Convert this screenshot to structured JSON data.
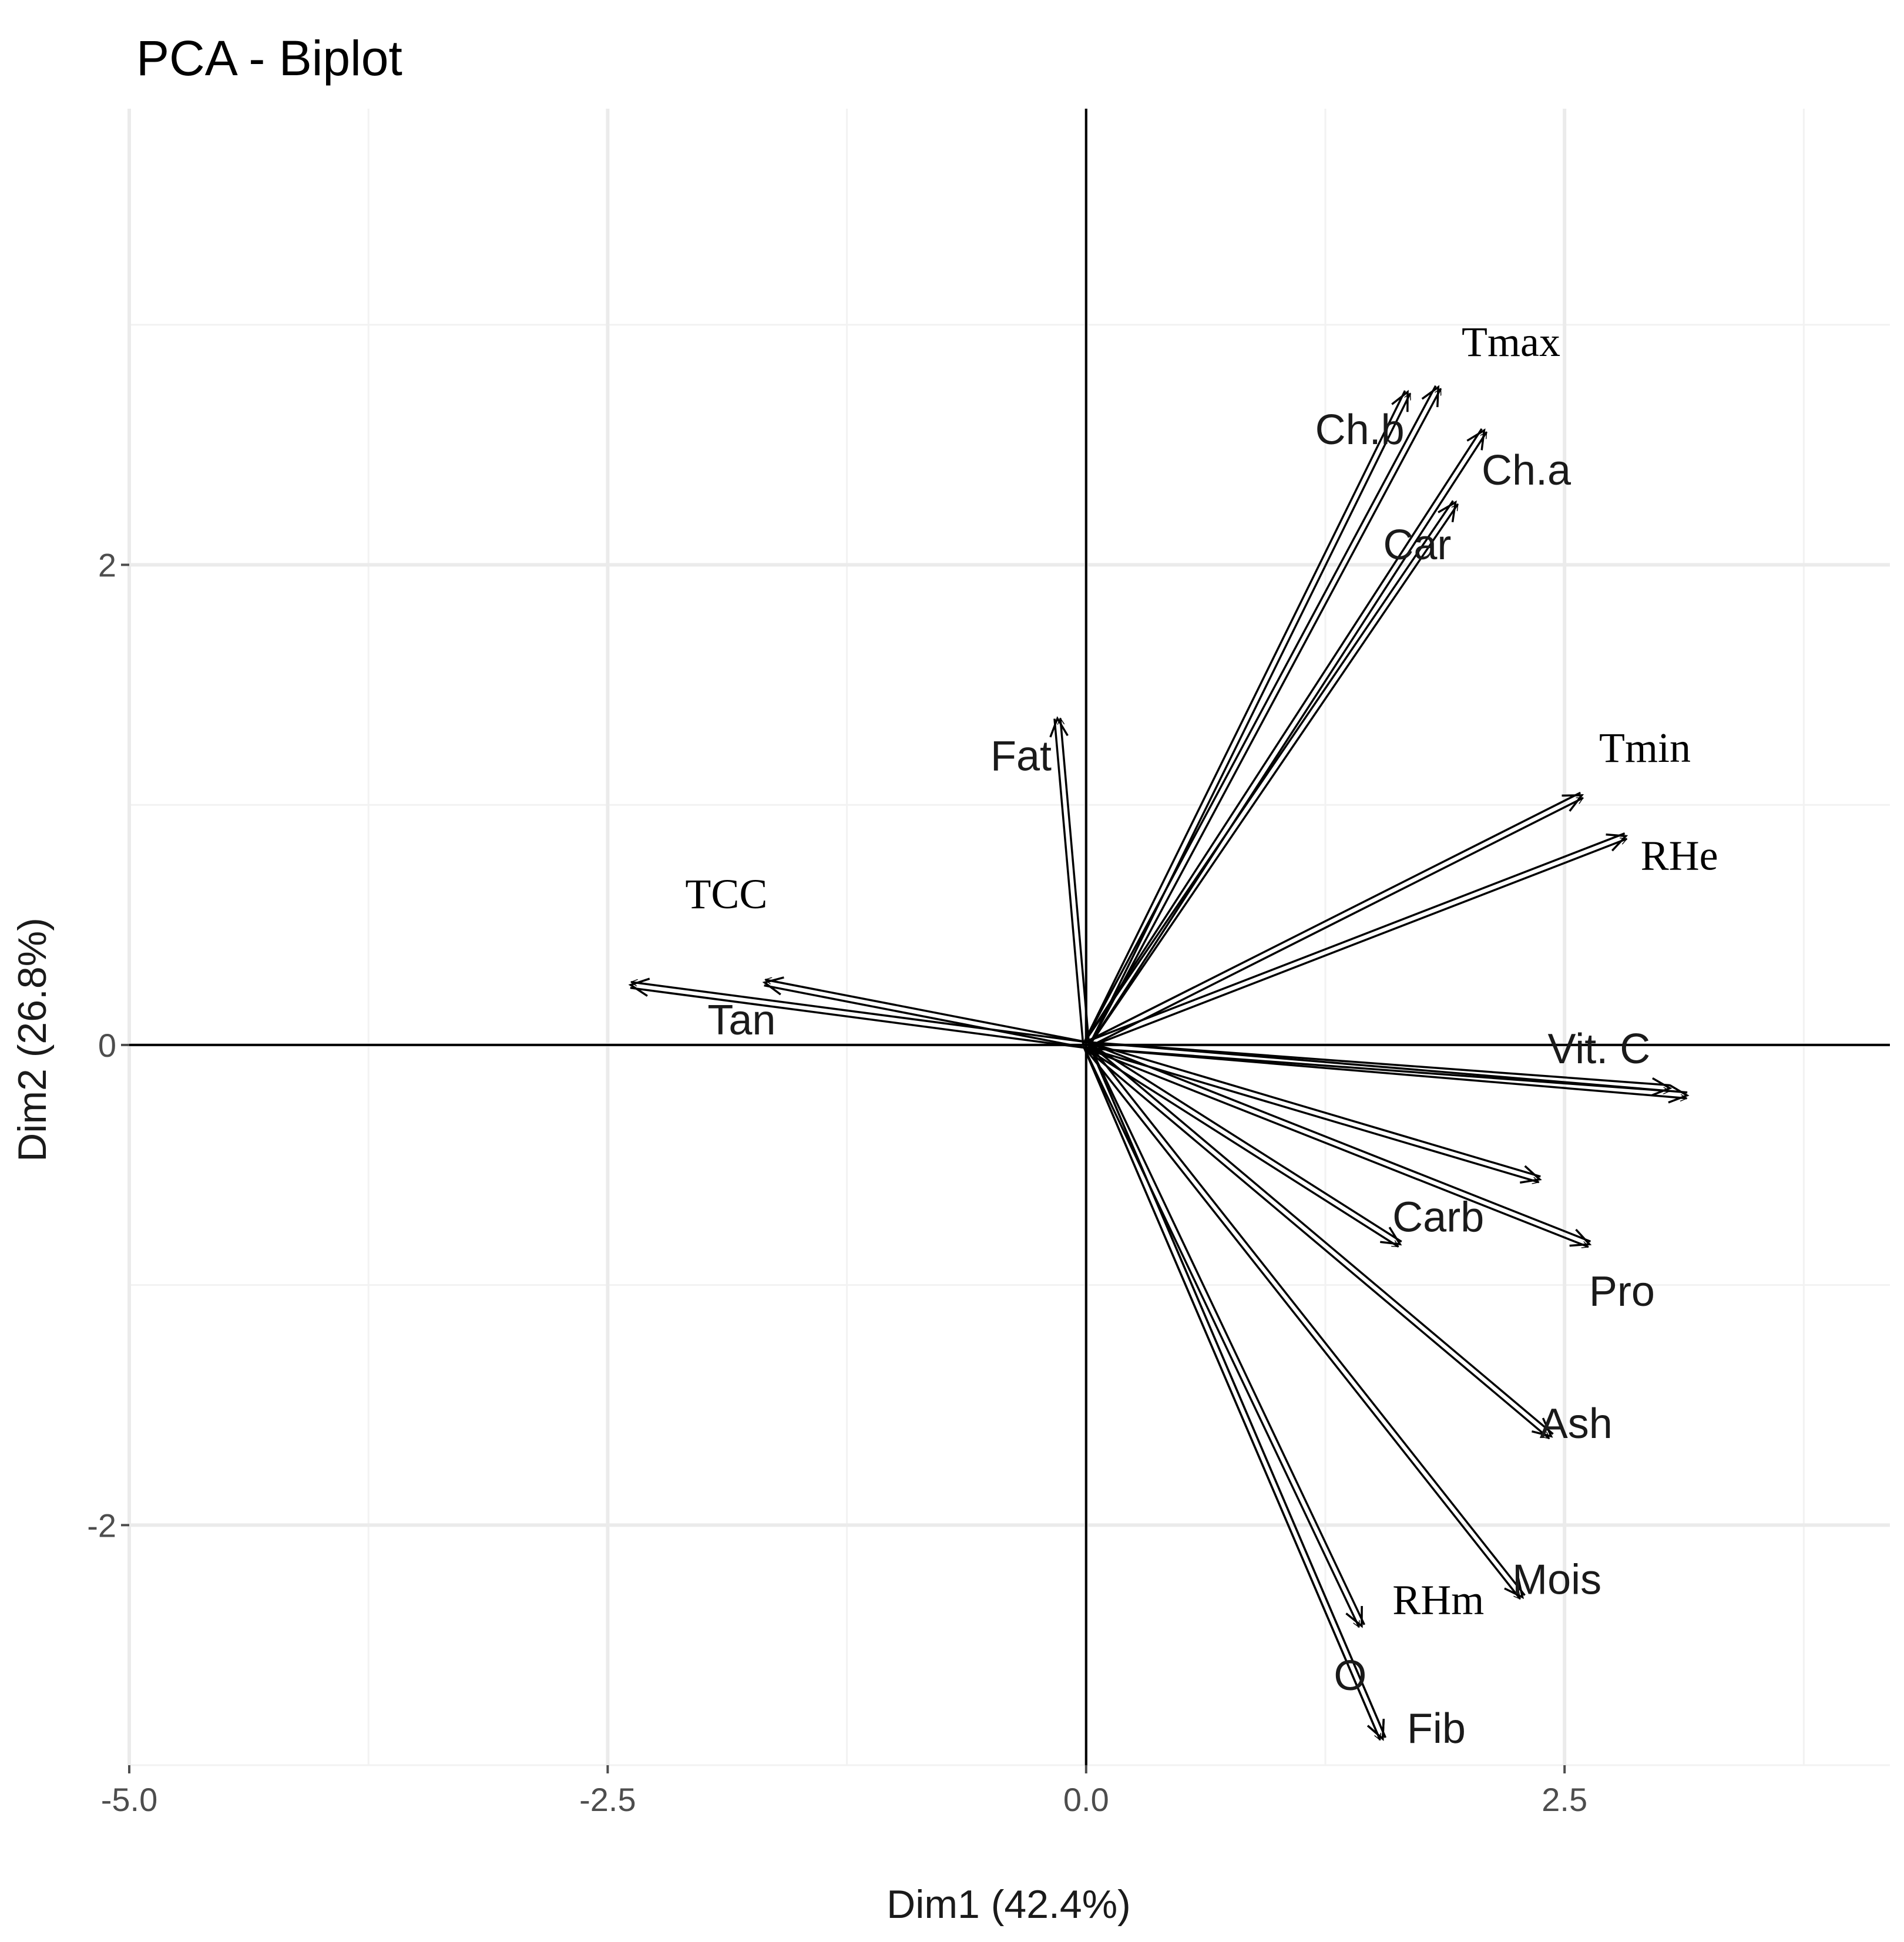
{
  "chart_data": {
    "type": "scatter",
    "title": "PCA - Biplot",
    "xlabel": "Dim1 (42.4%)",
    "ylabel": "Dim2 (26.8%)",
    "xlim": [
      -5.0,
      4.2
    ],
    "ylim": [
      -3.0,
      3.9
    ],
    "x_ticks": [
      -5.0,
      -2.5,
      0.0,
      2.5
    ],
    "x_tick_labels": [
      "-5.0",
      "-2.5",
      "0.0",
      "2.5"
    ],
    "y_ticks": [
      -2,
      0,
      2
    ],
    "y_tick_labels": [
      "-2",
      "0",
      "2"
    ],
    "grid": true,
    "zero_lines": true,
    "variables": [
      {
        "name": "Tmax",
        "x": 1.84,
        "y": 2.74,
        "label_x": 2.22,
        "label_y": 2.91,
        "font": "serif"
      },
      {
        "name": "Ch.b",
        "x": 1.68,
        "y": 2.72,
        "label_x": 1.43,
        "label_y": 2.55,
        "font": "sans"
      },
      {
        "name": "Ch.a",
        "x": 2.08,
        "y": 2.56,
        "label_x": 2.3,
        "label_y": 2.38,
        "font": "sans"
      },
      {
        "name": "Car",
        "x": 1.93,
        "y": 2.26,
        "label_x": 1.73,
        "label_y": 2.07,
        "font": "sans"
      },
      {
        "name": "Fat",
        "x": -0.15,
        "y": 1.36,
        "label_x": -0.34,
        "label_y": 1.19,
        "font": "sans"
      },
      {
        "name": "Tmin",
        "x": 2.59,
        "y": 1.04,
        "label_x": 2.92,
        "label_y": 1.22,
        "font": "serif"
      },
      {
        "name": "RHe",
        "x": 2.82,
        "y": 0.87,
        "label_x": 3.1,
        "label_y": 0.77,
        "font": "serif"
      },
      {
        "name": "TCC",
        "x": -1.68,
        "y": 0.26,
        "label_x": -1.88,
        "label_y": 0.61,
        "font": "serif"
      },
      {
        "name": "Tan",
        "x": -2.38,
        "y": 0.25,
        "label_x": -1.8,
        "label_y": 0.09,
        "font": "sans"
      },
      {
        "name": "Vit. C",
        "x": 3.14,
        "y": -0.21,
        "label_x": 2.68,
        "label_y": -0.03,
        "font": "sans"
      },
      {
        "name": "",
        "x": 3.05,
        "y": -0.18,
        "label_x": 0,
        "label_y": 0,
        "font": "sans"
      },
      {
        "name": "",
        "x": 2.37,
        "y": -0.56,
        "label_x": 0,
        "label_y": 0,
        "font": "sans"
      },
      {
        "name": "Carb",
        "x": 1.64,
        "y": -0.83,
        "label_x": 1.84,
        "label_y": -0.73,
        "font": "sans"
      },
      {
        "name": "Pro",
        "x": 2.63,
        "y": -0.83,
        "label_x": 2.8,
        "label_y": -1.04,
        "font": "sans"
      },
      {
        "name": "Ash",
        "x": 2.43,
        "y": -1.63,
        "label_x": 2.56,
        "label_y": -1.59,
        "font": "sans"
      },
      {
        "name": "Mois",
        "x": 2.28,
        "y": -2.3,
        "label_x": 2.46,
        "label_y": -2.24,
        "font": "sans"
      },
      {
        "name": "RHm",
        "x": 1.44,
        "y": -2.42,
        "label_x": 1.84,
        "label_y": -2.33,
        "font": "serif"
      },
      {
        "name": "O",
        "x": 1.55,
        "y": -2.89,
        "label_x": 1.38,
        "label_y": -2.64,
        "font": "sans"
      },
      {
        "name": "Fib",
        "x": 1.55,
        "y": -2.89,
        "label_x": 1.83,
        "label_y": -2.86,
        "font": "sans"
      }
    ]
  }
}
